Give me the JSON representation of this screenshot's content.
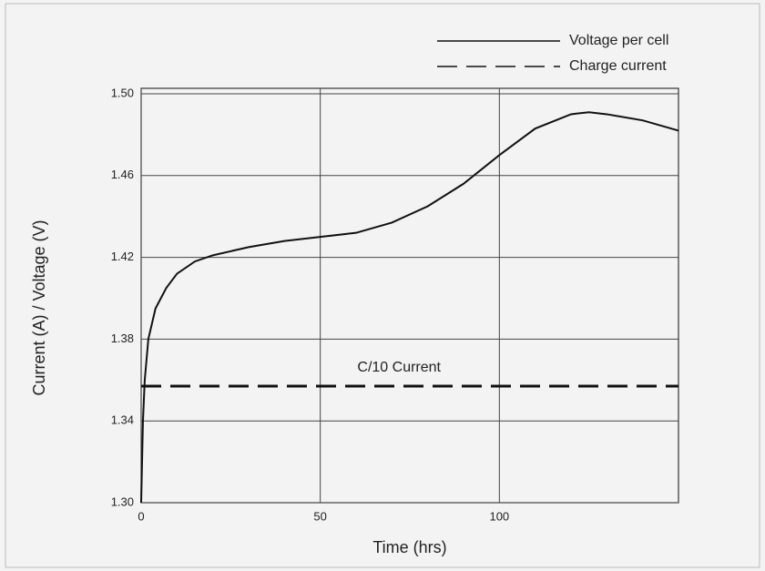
{
  "chart_data": {
    "type": "line",
    "xlabel": "Time (hrs)",
    "ylabel": "Current (A)  / Voltage (V)",
    "x": [
      0,
      0.5,
      1,
      2,
      4,
      7,
      10,
      15,
      20,
      30,
      40,
      50,
      60,
      70,
      80,
      90,
      100,
      110,
      120,
      125,
      130,
      140,
      150
    ],
    "series": [
      {
        "name": "Voltage per cell",
        "color": "#111111",
        "style": "solid",
        "values": [
          1.3,
          1.34,
          1.36,
          1.38,
          1.395,
          1.405,
          1.412,
          1.418,
          1.421,
          1.425,
          1.428,
          1.43,
          1.432,
          1.437,
          1.445,
          1.456,
          1.47,
          1.483,
          1.49,
          1.491,
          1.49,
          1.487,
          1.482
        ]
      },
      {
        "name": "Charge current",
        "color": "#111111",
        "style": "dashed",
        "values": [
          1.357,
          1.357,
          1.357,
          1.357,
          1.357,
          1.357,
          1.357,
          1.357,
          1.357,
          1.357,
          1.357,
          1.357,
          1.357,
          1.357,
          1.357,
          1.357,
          1.357,
          1.357,
          1.357,
          1.357,
          1.357,
          1.357,
          1.357
        ]
      }
    ],
    "annotations": [
      {
        "text": "C/10 Current",
        "x": 72,
        "y": 1.366
      }
    ],
    "xlim": [
      0,
      150
    ],
    "xticks": [
      0,
      50,
      100
    ],
    "ylim": [
      1.3,
      1.5
    ],
    "yticks": [
      {
        "value": 1.3,
        "label": "1.30"
      },
      1.34,
      1.38,
      1.42,
      1.46,
      {
        "value": 1.5,
        "label": "1.50"
      }
    ],
    "grid": true,
    "legend": "top-right"
  }
}
